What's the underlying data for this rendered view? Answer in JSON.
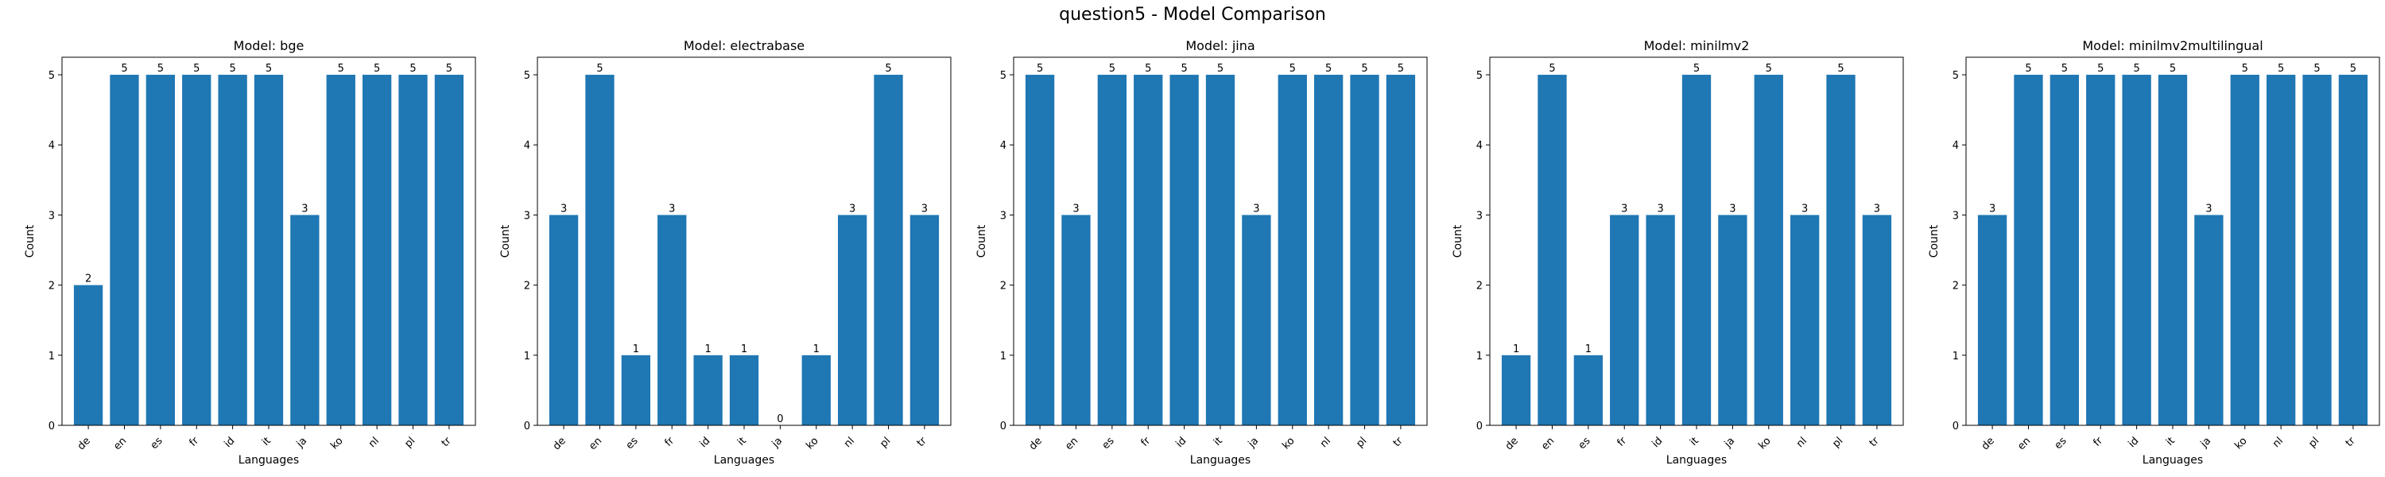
{
  "figure": {
    "title": "question5 - Model Comparison",
    "bar_color": "#1f77b4"
  },
  "chart_data": [
    {
      "type": "bar",
      "title": "Model: bge",
      "xlabel": "Languages",
      "ylabel": "Count",
      "categories": [
        "de",
        "en",
        "es",
        "fr",
        "id",
        "it",
        "ja",
        "ko",
        "nl",
        "pl",
        "tr"
      ],
      "values": [
        2,
        5,
        5,
        5,
        5,
        5,
        3,
        5,
        5,
        5,
        5
      ],
      "data_labels": [
        "2",
        "5",
        "5",
        "5",
        "5",
        "5",
        "3",
        "5",
        "5",
        "5",
        "5"
      ],
      "yticks": [
        "0",
        "1",
        "2",
        "3",
        "4",
        "5"
      ],
      "ylim": [
        0,
        5.25
      ],
      "grid": false
    },
    {
      "type": "bar",
      "title": "Model: electrabase",
      "xlabel": "Languages",
      "ylabel": "Count",
      "categories": [
        "de",
        "en",
        "es",
        "fr",
        "id",
        "it",
        "ja",
        "ko",
        "nl",
        "pl",
        "tr"
      ],
      "values": [
        3,
        5,
        1,
        3,
        1,
        1,
        0,
        1,
        3,
        5,
        3
      ],
      "data_labels": [
        "3",
        "5",
        "1",
        "3",
        "1",
        "1",
        "0",
        "1",
        "3",
        "5",
        "3"
      ],
      "yticks": [
        "0",
        "1",
        "2",
        "3",
        "4",
        "5"
      ],
      "ylim": [
        0,
        5.25
      ],
      "grid": false
    },
    {
      "type": "bar",
      "title": "Model: jina",
      "xlabel": "Languages",
      "ylabel": "Count",
      "categories": [
        "de",
        "en",
        "es",
        "fr",
        "id",
        "it",
        "ja",
        "ko",
        "nl",
        "pl",
        "tr"
      ],
      "values": [
        5,
        3,
        5,
        5,
        5,
        5,
        3,
        5,
        5,
        5,
        5
      ],
      "data_labels": [
        "5",
        "3",
        "5",
        "5",
        "5",
        "5",
        "3",
        "5",
        "5",
        "5",
        "5"
      ],
      "yticks": [
        "0",
        "1",
        "2",
        "3",
        "4",
        "5"
      ],
      "ylim": [
        0,
        5.25
      ],
      "grid": false
    },
    {
      "type": "bar",
      "title": "Model: minilmv2",
      "xlabel": "Languages",
      "ylabel": "Count",
      "categories": [
        "de",
        "en",
        "es",
        "fr",
        "id",
        "it",
        "ja",
        "ko",
        "nl",
        "pl",
        "tr"
      ],
      "values": [
        1,
        5,
        1,
        3,
        3,
        5,
        3,
        5,
        3,
        5,
        3
      ],
      "data_labels": [
        "1",
        "5",
        "1",
        "3",
        "3",
        "5",
        "3",
        "5",
        "3",
        "5",
        "3"
      ],
      "yticks": [
        "0",
        "1",
        "2",
        "3",
        "4",
        "5"
      ],
      "ylim": [
        0,
        5.25
      ],
      "grid": false
    },
    {
      "type": "bar",
      "title": "Model: minilmv2multilingual",
      "xlabel": "Languages",
      "ylabel": "Count",
      "categories": [
        "de",
        "en",
        "es",
        "fr",
        "id",
        "it",
        "ja",
        "ko",
        "nl",
        "pl",
        "tr"
      ],
      "values": [
        3,
        5,
        5,
        5,
        5,
        5,
        3,
        5,
        5,
        5,
        5
      ],
      "data_labels": [
        "3",
        "5",
        "5",
        "5",
        "5",
        "5",
        "3",
        "5",
        "5",
        "5",
        "5"
      ],
      "yticks": [
        "0",
        "1",
        "2",
        "3",
        "4",
        "5"
      ],
      "ylim": [
        0,
        5.25
      ],
      "grid": false
    }
  ]
}
